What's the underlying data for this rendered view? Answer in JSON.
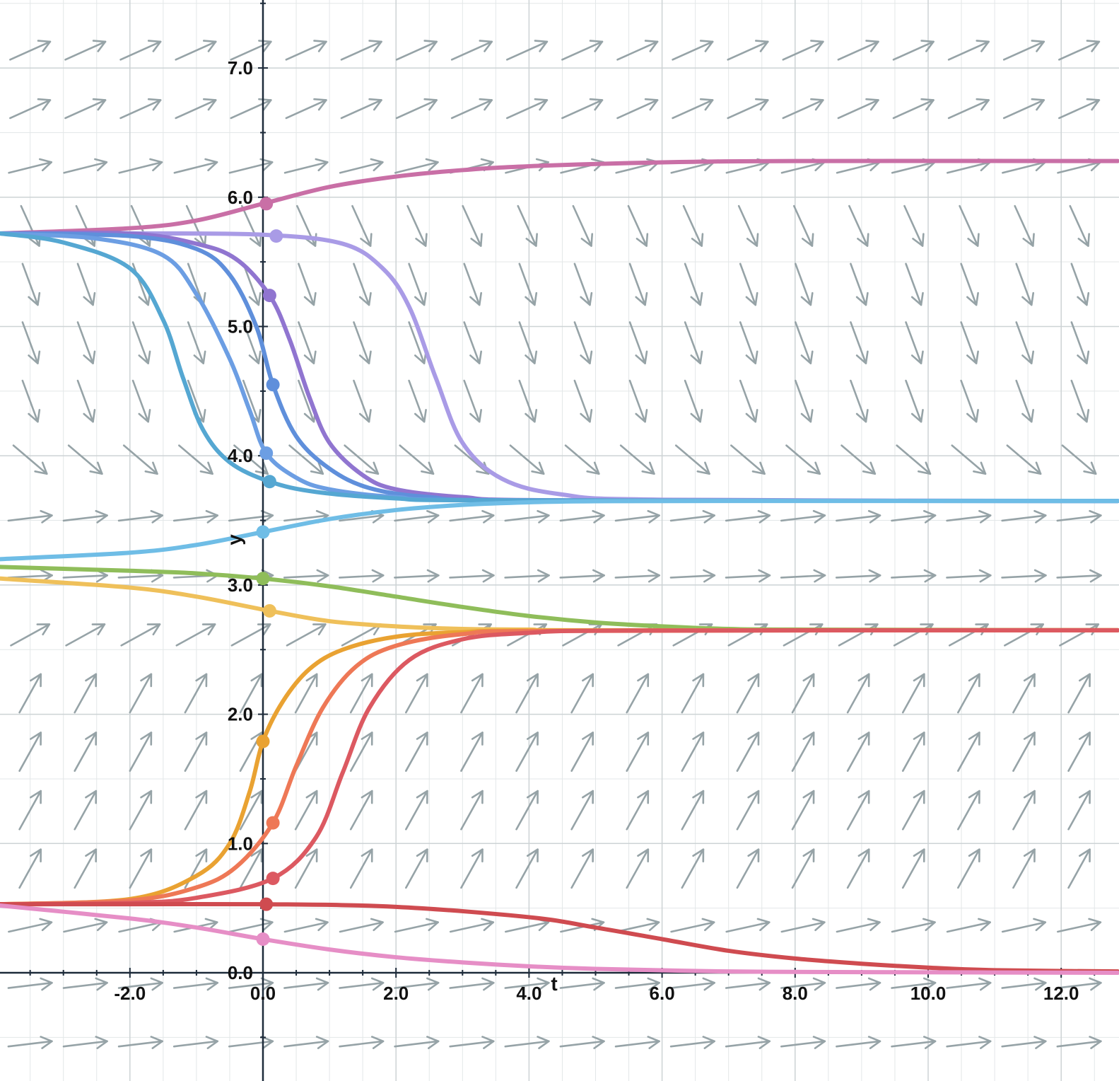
{
  "chart_data": {
    "type": "line",
    "subtype": "slope-field",
    "title": "",
    "xlabel": "t",
    "ylabel": "y",
    "xlim": [
      -3.95,
      12.85
    ],
    "ylim": [
      -0.75,
      7.5
    ],
    "grid": true,
    "minor_grid_step": 0.5,
    "x_ticks": [
      -2.0,
      0.0,
      2.0,
      4.0,
      6.0,
      8.0,
      10.0,
      12.0
    ],
    "x_tick_labels": [
      "-2.0",
      "0.0",
      "2.0",
      "4.0",
      "6.0",
      "8.0",
      "10.0",
      "12.0"
    ],
    "y_ticks": [
      0.0,
      1.0,
      2.0,
      3.0,
      4.0,
      5.0,
      6.0,
      7.0
    ],
    "y_tick_labels": [
      "0.0",
      "1.0",
      "2.0",
      "3.0",
      "4.0",
      "5.0",
      "6.0",
      "7.0"
    ],
    "equilibria": [
      0,
      2.65,
      3.65,
      6.28
    ],
    "field_arrow_color": "#96a3a7",
    "series": [
      {
        "color": "#c96fa6",
        "point": [
          0.05,
          5.95
        ],
        "x": [
          -3.95,
          -2,
          -1,
          0,
          1,
          2,
          3,
          4,
          6,
          8,
          12.85
        ],
        "y": [
          5.72,
          5.76,
          5.82,
          5.95,
          6.08,
          6.16,
          6.21,
          6.24,
          6.27,
          6.28,
          6.28
        ]
      },
      {
        "color": "#a99be6",
        "point": [
          0.2,
          5.7
        ],
        "x": [
          -3.95,
          -2,
          0,
          1.2,
          1.8,
          2.2,
          2.6,
          3.0,
          3.6,
          4.5,
          6,
          12.85
        ],
        "y": [
          5.72,
          5.72,
          5.71,
          5.64,
          5.45,
          5.15,
          4.6,
          4.1,
          3.82,
          3.7,
          3.66,
          3.65
        ]
      },
      {
        "color": "#9075d0",
        "point": [
          0.1,
          5.24
        ],
        "x": [
          -3.95,
          -2,
          -1,
          -0.4,
          0.1,
          0.4,
          0.7,
          1.0,
          1.5,
          2.0,
          3.0,
          4.5,
          12.85
        ],
        "y": [
          5.72,
          5.72,
          5.64,
          5.52,
          5.24,
          4.9,
          4.45,
          4.1,
          3.85,
          3.74,
          3.68,
          3.655,
          3.65
        ]
      },
      {
        "color": "#5f8fdb",
        "point": [
          0.15,
          4.55
        ],
        "x": [
          -3.95,
          -2,
          -1,
          -0.5,
          -0.1,
          0.15,
          0.5,
          1.0,
          1.6,
          2.5,
          4.0,
          12.85
        ],
        "y": [
          5.72,
          5.7,
          5.6,
          5.4,
          5.0,
          4.55,
          4.15,
          3.9,
          3.75,
          3.68,
          3.655,
          3.65
        ]
      },
      {
        "color": "#6c9ee3",
        "point": [
          0.05,
          4.02
        ],
        "x": [
          -3.95,
          -2.5,
          -1.5,
          -1.0,
          -0.5,
          -0.2,
          0.05,
          0.5,
          1.0,
          2.0,
          3.5,
          12.85
        ],
        "y": [
          5.72,
          5.68,
          5.55,
          5.25,
          4.75,
          4.35,
          4.02,
          3.83,
          3.74,
          3.68,
          3.655,
          3.65
        ]
      },
      {
        "color": "#55a7d2",
        "point": [
          0.1,
          3.8
        ],
        "x": [
          -3.95,
          -3,
          -2,
          -1.5,
          -1.2,
          -0.9,
          -0.5,
          0.1,
          0.8,
          2.0,
          3.5,
          12.85
        ],
        "y": [
          5.72,
          5.65,
          5.45,
          5.05,
          4.6,
          4.2,
          3.95,
          3.8,
          3.72,
          3.67,
          3.655,
          3.65
        ]
      },
      {
        "color": "#6fbde6",
        "point": [
          0.0,
          3.41
        ],
        "x": [
          -3.95,
          -2,
          -1,
          0,
          1,
          2,
          3,
          4,
          5,
          7,
          12.85
        ],
        "y": [
          3.2,
          3.25,
          3.31,
          3.41,
          3.51,
          3.58,
          3.62,
          3.64,
          3.648,
          3.65,
          3.65
        ]
      },
      {
        "color": "#8fbd5a",
        "point": [
          0.0,
          3.05
        ],
        "x": [
          -3.95,
          -2,
          -1,
          0,
          1,
          2,
          3,
          4,
          5,
          6,
          7,
          8,
          12.85
        ],
        "y": [
          3.14,
          3.11,
          3.09,
          3.05,
          2.99,
          2.91,
          2.83,
          2.76,
          2.71,
          2.68,
          2.66,
          2.655,
          2.65
        ]
      },
      {
        "color": "#efc05a",
        "point": [
          0.1,
          2.8
        ],
        "x": [
          -3.95,
          -2,
          -1,
          0.1,
          1,
          2,
          3,
          4,
          5,
          12.85
        ],
        "y": [
          3.05,
          2.98,
          2.91,
          2.8,
          2.72,
          2.68,
          2.66,
          2.655,
          2.65,
          2.65
        ]
      },
      {
        "color": "#e9a232",
        "point": [
          0.0,
          1.79
        ],
        "x": [
          -3.95,
          -2,
          -1,
          -0.5,
          -0.2,
          0.0,
          0.3,
          0.7,
          1.2,
          2.0,
          3.0,
          4.5,
          12.85
        ],
        "y": [
          0.53,
          0.57,
          0.75,
          1.0,
          1.4,
          1.79,
          2.1,
          2.35,
          2.5,
          2.6,
          2.635,
          2.648,
          2.65
        ]
      },
      {
        "color": "#ee7856",
        "point": [
          0.15,
          1.16
        ],
        "x": [
          -3.95,
          -2,
          -1,
          -0.4,
          0.15,
          0.5,
          0.9,
          1.4,
          2.0,
          3.0,
          4.5,
          12.85
        ],
        "y": [
          0.53,
          0.56,
          0.66,
          0.82,
          1.16,
          1.6,
          2.05,
          2.37,
          2.53,
          2.62,
          2.645,
          2.65
        ]
      },
      {
        "color": "#dc5961",
        "point": [
          0.15,
          0.73
        ],
        "x": [
          -3.95,
          -2,
          -1,
          0.15,
          0.8,
          1.2,
          1.6,
          2.2,
          3.0,
          4.0,
          5.5,
          12.85
        ],
        "y": [
          0.53,
          0.54,
          0.58,
          0.73,
          1.05,
          1.55,
          2.05,
          2.42,
          2.58,
          2.63,
          2.648,
          2.65
        ]
      },
      {
        "color": "#cf4b50",
        "point": [
          0.05,
          0.53
        ],
        "x": [
          -3.95,
          -2,
          0.05,
          2,
          4,
          5,
          6,
          7,
          8,
          9,
          10,
          11,
          12.85
        ],
        "y": [
          0.53,
          0.53,
          0.53,
          0.51,
          0.43,
          0.35,
          0.26,
          0.17,
          0.11,
          0.07,
          0.04,
          0.02,
          0.01
        ]
      },
      {
        "color": "#e68ec6",
        "point": [
          0.0,
          0.26
        ],
        "x": [
          -3.95,
          -2,
          -1,
          0,
          1,
          2,
          3,
          4,
          5,
          7,
          9,
          12.85
        ],
        "y": [
          0.52,
          0.42,
          0.35,
          0.26,
          0.18,
          0.12,
          0.08,
          0.05,
          0.03,
          0.01,
          0.005,
          0.0
        ]
      }
    ]
  }
}
